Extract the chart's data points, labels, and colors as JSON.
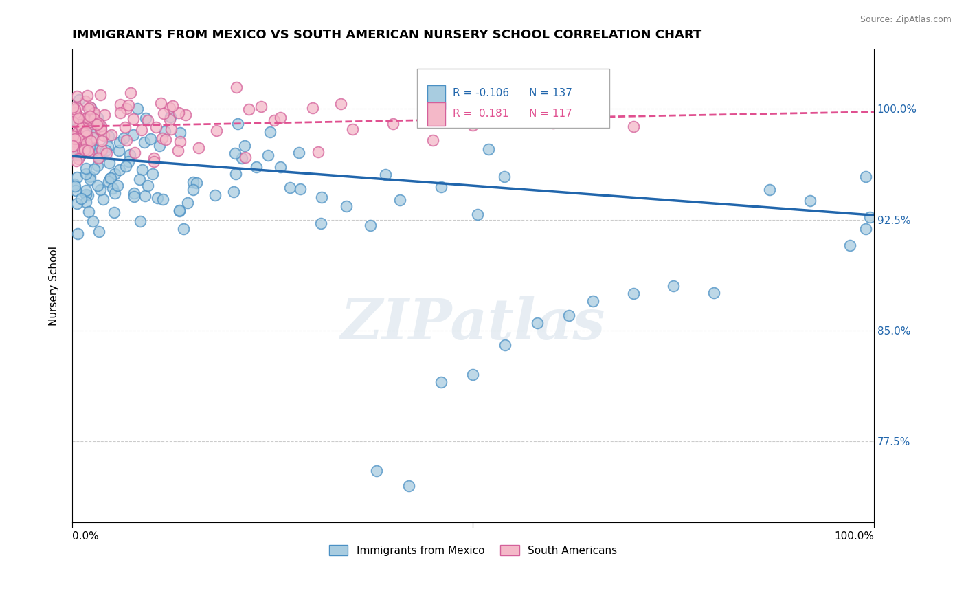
{
  "title": "IMMIGRANTS FROM MEXICO VS SOUTH AMERICAN NURSERY SCHOOL CORRELATION CHART",
  "source": "Source: ZipAtlas.com",
  "ylabel": "Nursery School",
  "yticks": [
    0.775,
    0.85,
    0.925,
    1.0
  ],
  "ytick_labels": [
    "77.5%",
    "85.0%",
    "92.5%",
    "100.0%"
  ],
  "xlim": [
    0.0,
    1.0
  ],
  "ylim": [
    0.72,
    1.04
  ],
  "blue_R": -0.106,
  "blue_N": 137,
  "pink_R": 0.181,
  "pink_N": 117,
  "blue_color": "#a8cce0",
  "pink_color": "#f4b8c8",
  "blue_edge_color": "#4a90c4",
  "pink_edge_color": "#d4609a",
  "blue_line_color": "#2166ac",
  "pink_line_color": "#e05090",
  "legend_blue_label": "Immigrants from Mexico",
  "legend_pink_label": "South Americans",
  "watermark": "ZIPatlas",
  "blue_trend_x": [
    0.0,
    1.0
  ],
  "blue_trend_y": [
    0.968,
    0.928
  ],
  "pink_trend_x": [
    0.0,
    1.0
  ],
  "pink_trend_y": [
    0.988,
    0.998
  ]
}
